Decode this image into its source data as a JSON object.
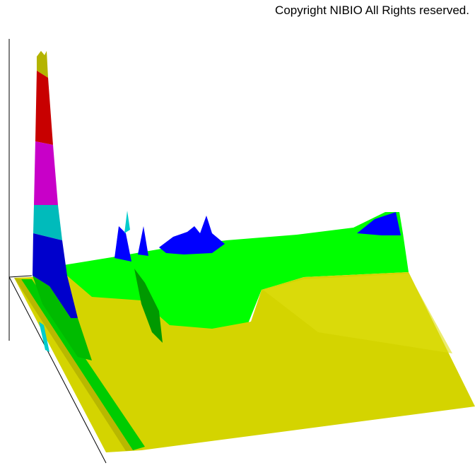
{
  "copyright": "Copyright NIBIO All Rights reserved."
}
